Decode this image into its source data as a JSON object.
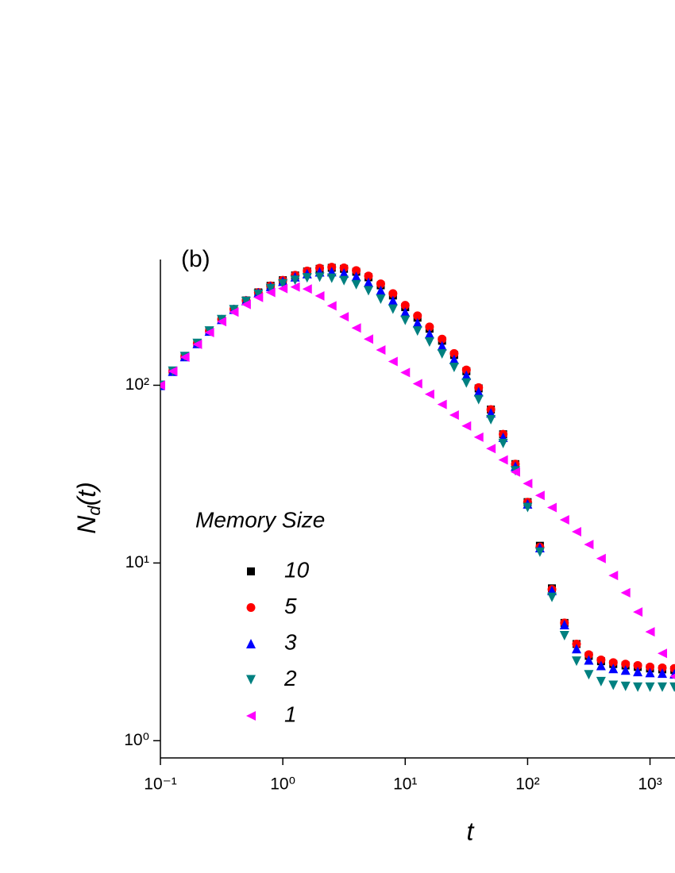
{
  "chart_data": {
    "type": "scatter",
    "panel_label": "(b)",
    "xlabel": "t",
    "ylabel": [
      "N",
      "d",
      "(t)"
    ],
    "xscale": "log",
    "yscale": "log",
    "xlim": [
      0.1,
      1600
    ],
    "ylim": [
      0.8,
      510
    ],
    "xticks": [
      {
        "value": 0.1,
        "label": "10⁻¹"
      },
      {
        "value": 1,
        "label": "10⁰"
      },
      {
        "value": 10,
        "label": "10¹"
      },
      {
        "value": 100,
        "label": "10²"
      },
      {
        "value": 1000,
        "label": "10³"
      }
    ],
    "yticks": [
      {
        "value": 1,
        "label": "10⁰"
      },
      {
        "value": 10,
        "label": "10¹"
      },
      {
        "value": 100,
        "label": "10²"
      }
    ],
    "legend_title": "Memory Size",
    "legend_loc": "lower left",
    "x": [
      0.1,
      0.126,
      0.158,
      0.2,
      0.251,
      0.316,
      0.398,
      0.501,
      0.631,
      0.794,
      1,
      1.26,
      1.58,
      2,
      2.51,
      3.16,
      3.98,
      5.01,
      6.31,
      7.94,
      10,
      12.6,
      15.8,
      20,
      25.1,
      31.6,
      39.8,
      50.1,
      63.1,
      79.4,
      100,
      126,
      158,
      200,
      251,
      316,
      398,
      501,
      631,
      794,
      1000,
      1260,
      1580
    ],
    "series": [
      {
        "name": "10",
        "color": "#000000",
        "marker": "square",
        "values": [
          100,
          120,
          145,
          172,
          202,
          235,
          268,
          300,
          333,
          363,
          390,
          415,
          437,
          452,
          458,
          452,
          435,
          405,
          365,
          320,
          275,
          240,
          208,
          178,
          148,
          120,
          96,
          73,
          53,
          36,
          22,
          12.5,
          7.2,
          4.6,
          3.5,
          3.0,
          2.8,
          2.7,
          2.65,
          2.6,
          2.55,
          2.52,
          2.5
        ]
      },
      {
        "name": "5",
        "color": "#ff0000",
        "marker": "circle",
        "values": [
          100,
          120,
          145,
          172,
          202,
          235,
          268,
          300,
          333,
          363,
          390,
          416,
          440,
          456,
          462,
          458,
          442,
          412,
          372,
          328,
          282,
          246,
          213,
          182,
          151,
          122,
          97,
          73,
          53,
          36,
          22,
          12.3,
          7.1,
          4.6,
          3.5,
          3.05,
          2.85,
          2.75,
          2.7,
          2.65,
          2.6,
          2.57,
          2.55
        ]
      },
      {
        "name": "3",
        "color": "#0000ff",
        "marker": "triangle-up",
        "values": [
          100,
          120,
          145,
          172,
          202,
          235,
          268,
          300,
          332,
          360,
          385,
          408,
          425,
          435,
          436,
          428,
          410,
          380,
          342,
          300,
          258,
          225,
          195,
          167,
          140,
          114,
          92,
          70,
          51,
          35,
          21.5,
          12.2,
          7.0,
          4.5,
          3.3,
          2.85,
          2.65,
          2.55,
          2.5,
          2.45,
          2.42,
          2.4,
          2.38
        ]
      },
      {
        "name": "2",
        "color": "#008080",
        "marker": "triangle-down",
        "values": [
          100,
          120,
          145,
          172,
          202,
          234,
          266,
          296,
          325,
          350,
          372,
          390,
          402,
          405,
          400,
          388,
          368,
          340,
          305,
          268,
          232,
          202,
          175,
          150,
          126,
          103,
          83,
          64,
          47,
          33,
          20.5,
          11.5,
          6.4,
          3.9,
          2.8,
          2.35,
          2.15,
          2.05,
          2.02,
          2.0,
          2.0,
          2.0,
          2.0
        ]
      },
      {
        "name": "1",
        "color": "#ff00ff",
        "marker": "triangle-left",
        "values": [
          100,
          120,
          144,
          170,
          198,
          228,
          258,
          285,
          312,
          333,
          350,
          357,
          348,
          318,
          280,
          243,
          210,
          182,
          158,
          136,
          118,
          102,
          89,
          78,
          68,
          59,
          51,
          44,
          38,
          32.5,
          28,
          24,
          20.5,
          17.5,
          15,
          12.7,
          10.6,
          8.5,
          6.8,
          5.3,
          4.1,
          3.1,
          2.3
        ]
      }
    ]
  }
}
